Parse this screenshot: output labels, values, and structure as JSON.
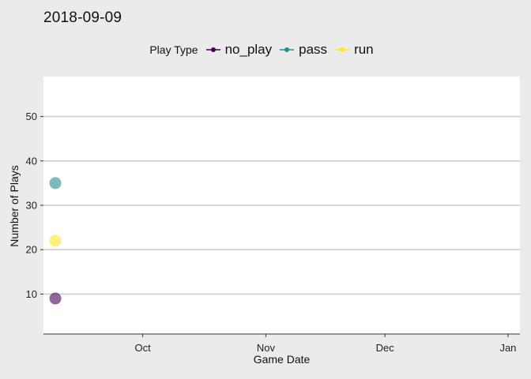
{
  "chart_data": {
    "type": "scatter",
    "title": "2018-09-09",
    "xlabel": "Game Date",
    "ylabel": "Number of Plays",
    "legend_title": "Play Type",
    "legend_position": "top",
    "grid": "horizontal-major",
    "x_type": "date",
    "xlim": [
      "2018-09-06",
      "2019-01-04"
    ],
    "ylim": [
      1,
      59
    ],
    "x_ticks": [
      {
        "label": "Oct",
        "date": "2018-10-01"
      },
      {
        "label": "Nov",
        "date": "2018-11-01"
      },
      {
        "label": "Dec",
        "date": "2018-12-01"
      },
      {
        "label": "Jan",
        "date": "2019-01-01"
      }
    ],
    "y_ticks": [
      10,
      20,
      30,
      40,
      50
    ],
    "series": [
      {
        "name": "no_play",
        "color": "#440154",
        "points": [
          {
            "x": "2018-09-09",
            "y": 9
          }
        ]
      },
      {
        "name": "pass",
        "color": "#21908c",
        "points": [
          {
            "x": "2018-09-09",
            "y": 35
          }
        ]
      },
      {
        "name": "run",
        "color": "#fde725",
        "points": [
          {
            "x": "2018-09-09",
            "y": 22
          }
        ]
      }
    ]
  }
}
